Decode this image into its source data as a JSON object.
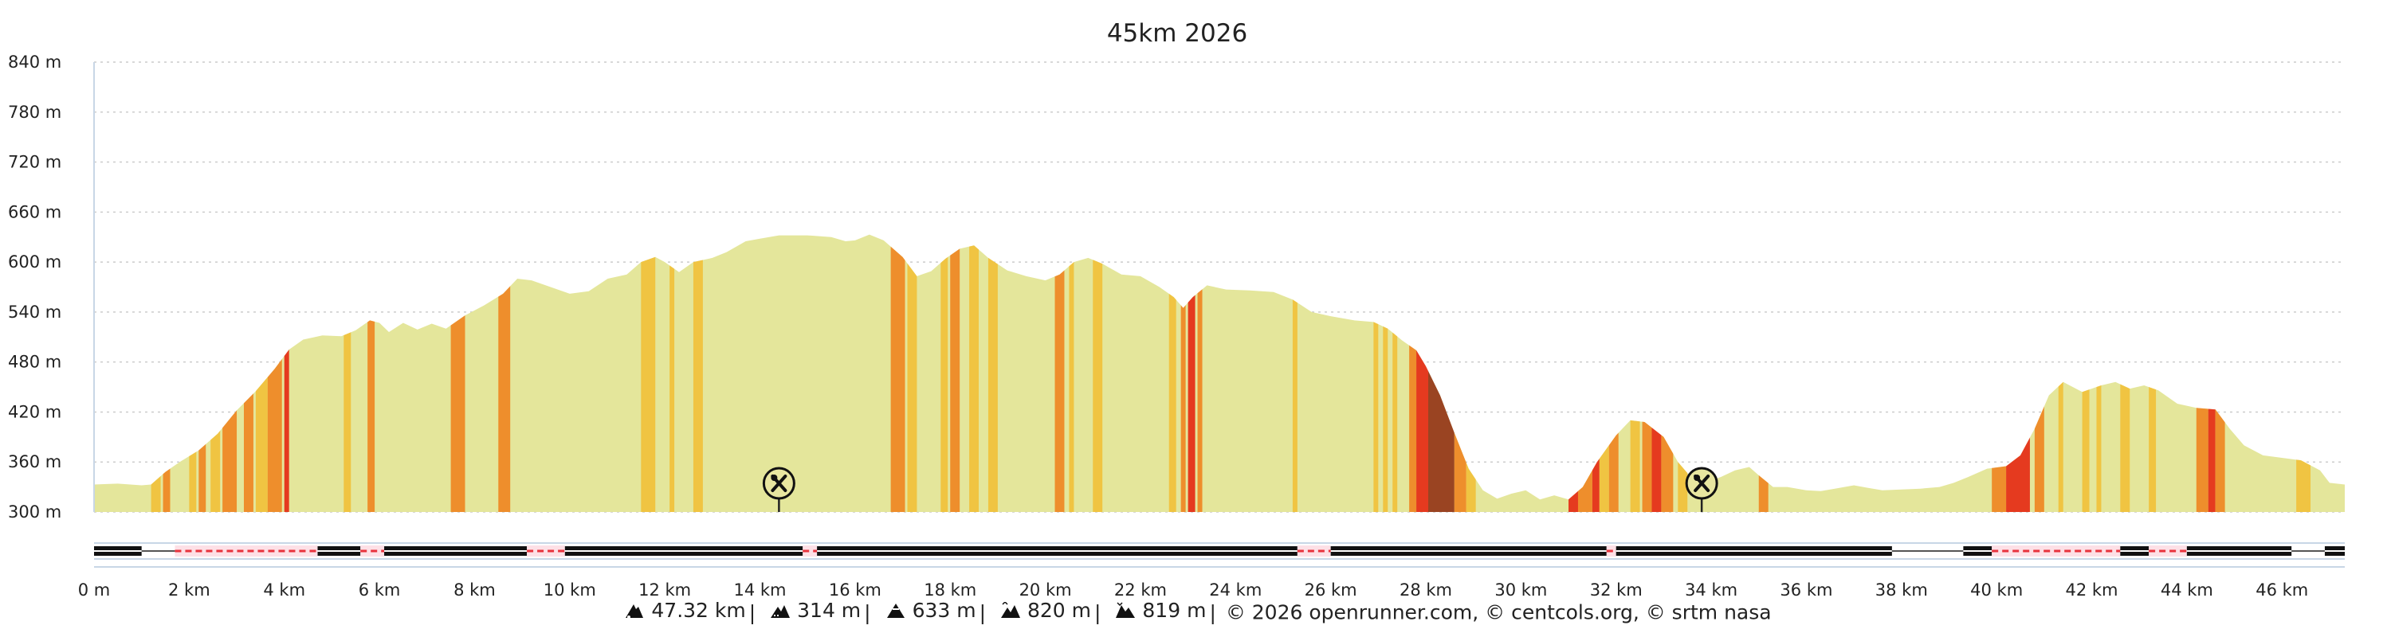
{
  "colors": {
    "fill": "#e4e69b",
    "grad_yellow": "#f0c442",
    "grad_orange": "#ee8e2c",
    "grad_red": "#e53a1f",
    "grad_brown": "#9a4422",
    "grid": "#cccccc",
    "axis": "#c8d6e6",
    "track": "#111111",
    "track_dashed": "#e8323c"
  },
  "chart_data": {
    "type": "area",
    "title": "45km 2026",
    "xlabel": "",
    "ylabel": "",
    "x_unit": "km",
    "y_unit": "m",
    "xlim": [
      0,
      47.32
    ],
    "ylim": [
      300,
      840
    ],
    "x_ticks": [
      0,
      2,
      4,
      6,
      8,
      10,
      12,
      14,
      16,
      18,
      20,
      22,
      24,
      26,
      28,
      30,
      32,
      34,
      36,
      38,
      40,
      42,
      44,
      46
    ],
    "x_tick_labels": [
      "0 m",
      "2 km",
      "4 km",
      "6 km",
      "8 km",
      "10 km",
      "12 km",
      "14 km",
      "16 km",
      "18 km",
      "20 km",
      "22 km",
      "24 km",
      "26 km",
      "28 km",
      "30 km",
      "32 km",
      "34 km",
      "36 km",
      "38 km",
      "40 km",
      "42 km",
      "44 km",
      "46 km"
    ],
    "y_ticks": [
      300,
      360,
      420,
      480,
      540,
      600,
      660,
      720,
      780,
      840
    ],
    "y_tick_labels": [
      "300 m",
      "360 m",
      "420 m",
      "480 m",
      "540 m",
      "600 m",
      "660 m",
      "720 m",
      "780 m",
      "840 m"
    ],
    "grid": true,
    "series": [
      {
        "points": [
          [
            0,
            333
          ],
          [
            0.5,
            334
          ],
          [
            1.0,
            332
          ],
          [
            1.2,
            333
          ],
          [
            1.5,
            348
          ],
          [
            1.8,
            360
          ],
          [
            2.2,
            374
          ],
          [
            2.6,
            394
          ],
          [
            3.0,
            422
          ],
          [
            3.4,
            445
          ],
          [
            3.8,
            472
          ],
          [
            4.1,
            495
          ],
          [
            4.4,
            507
          ],
          [
            4.8,
            512
          ],
          [
            5.2,
            511
          ],
          [
            5.5,
            518
          ],
          [
            5.8,
            530
          ],
          [
            6.0,
            527
          ],
          [
            6.2,
            516
          ],
          [
            6.5,
            527
          ],
          [
            6.8,
            519
          ],
          [
            7.1,
            526
          ],
          [
            7.4,
            520
          ],
          [
            7.8,
            536
          ],
          [
            8.2,
            548
          ],
          [
            8.6,
            562
          ],
          [
            8.9,
            580
          ],
          [
            9.2,
            578
          ],
          [
            9.6,
            570
          ],
          [
            10.0,
            562
          ],
          [
            10.4,
            565
          ],
          [
            10.8,
            580
          ],
          [
            11.2,
            585
          ],
          [
            11.5,
            600
          ],
          [
            11.8,
            606
          ],
          [
            12.0,
            600
          ],
          [
            12.3,
            588
          ],
          [
            12.6,
            600
          ],
          [
            13.0,
            605
          ],
          [
            13.3,
            612
          ],
          [
            13.7,
            625
          ],
          [
            14.0,
            628
          ],
          [
            14.4,
            632
          ],
          [
            15.0,
            632
          ],
          [
            15.5,
            630
          ],
          [
            15.8,
            625
          ],
          [
            16.0,
            626
          ],
          [
            16.3,
            633
          ],
          [
            16.6,
            626
          ],
          [
            17.0,
            606
          ],
          [
            17.3,
            583
          ],
          [
            17.6,
            589
          ],
          [
            17.9,
            604
          ],
          [
            18.2,
            616
          ],
          [
            18.5,
            620
          ],
          [
            18.8,
            605
          ],
          [
            19.2,
            590
          ],
          [
            19.6,
            583
          ],
          [
            20.0,
            578
          ],
          [
            20.3,
            585
          ],
          [
            20.6,
            600
          ],
          [
            20.9,
            605
          ],
          [
            21.2,
            598
          ],
          [
            21.6,
            585
          ],
          [
            22.0,
            583
          ],
          [
            22.4,
            570
          ],
          [
            22.7,
            558
          ],
          [
            22.9,
            545
          ],
          [
            23.1,
            558
          ],
          [
            23.4,
            572
          ],
          [
            23.8,
            567
          ],
          [
            24.3,
            566
          ],
          [
            24.8,
            564
          ],
          [
            25.2,
            555
          ],
          [
            25.6,
            540
          ],
          [
            26.0,
            535
          ],
          [
            26.5,
            530
          ],
          [
            26.9,
            528
          ],
          [
            27.2,
            520
          ],
          [
            27.5,
            506
          ],
          [
            27.8,
            494
          ],
          [
            28.0,
            475
          ],
          [
            28.3,
            440
          ],
          [
            28.6,
            395
          ],
          [
            28.9,
            352
          ],
          [
            29.2,
            326
          ],
          [
            29.5,
            316
          ],
          [
            29.8,
            322
          ],
          [
            30.1,
            326
          ],
          [
            30.4,
            315
          ],
          [
            30.7,
            320
          ],
          [
            31.0,
            315
          ],
          [
            31.3,
            330
          ],
          [
            31.6,
            360
          ],
          [
            32.0,
            392
          ],
          [
            32.3,
            410
          ],
          [
            32.6,
            408
          ],
          [
            33.0,
            390
          ],
          [
            33.3,
            360
          ],
          [
            33.6,
            340
          ],
          [
            33.9,
            336
          ],
          [
            34.2,
            342
          ],
          [
            34.5,
            350
          ],
          [
            34.8,
            354
          ],
          [
            35.0,
            344
          ],
          [
            35.3,
            330
          ],
          [
            35.6,
            330
          ],
          [
            36.0,
            326
          ],
          [
            36.3,
            325
          ],
          [
            36.6,
            328
          ],
          [
            37.0,
            332
          ],
          [
            37.3,
            329
          ],
          [
            37.6,
            326
          ],
          [
            38.0,
            327
          ],
          [
            38.4,
            328
          ],
          [
            38.8,
            330
          ],
          [
            39.1,
            335
          ],
          [
            39.4,
            342
          ],
          [
            39.8,
            352
          ],
          [
            40.2,
            355
          ],
          [
            40.5,
            368
          ],
          [
            40.8,
            400
          ],
          [
            41.1,
            440
          ],
          [
            41.4,
            456
          ],
          [
            41.8,
            444
          ],
          [
            42.2,
            452
          ],
          [
            42.5,
            456
          ],
          [
            42.8,
            448
          ],
          [
            43.1,
            452
          ],
          [
            43.4,
            446
          ],
          [
            43.8,
            430
          ],
          [
            44.2,
            425
          ],
          [
            44.6,
            423
          ],
          [
            44.9,
            400
          ],
          [
            45.2,
            380
          ],
          [
            45.6,
            368
          ],
          [
            46.0,
            365
          ],
          [
            46.4,
            362
          ],
          [
            46.8,
            350
          ],
          [
            47.0,
            335
          ],
          [
            47.32,
            333
          ]
        ]
      }
    ],
    "gradient_bands": [
      {
        "from": 1.2,
        "to": 1.4,
        "level": "yellow"
      },
      {
        "from": 1.45,
        "to": 1.6,
        "level": "orange"
      },
      {
        "from": 2.0,
        "to": 2.15,
        "level": "yellow"
      },
      {
        "from": 2.2,
        "to": 2.35,
        "level": "orange"
      },
      {
        "from": 2.45,
        "to": 2.65,
        "level": "yellow"
      },
      {
        "from": 2.7,
        "to": 3.0,
        "level": "orange"
      },
      {
        "from": 3.15,
        "to": 3.35,
        "level": "orange"
      },
      {
        "from": 3.4,
        "to": 3.65,
        "level": "yellow"
      },
      {
        "from": 3.65,
        "to": 3.95,
        "level": "orange"
      },
      {
        "from": 4.0,
        "to": 4.1,
        "level": "red"
      },
      {
        "from": 5.25,
        "to": 5.4,
        "level": "yellow"
      },
      {
        "from": 5.75,
        "to": 5.9,
        "level": "orange"
      },
      {
        "from": 7.5,
        "to": 7.8,
        "level": "orange"
      },
      {
        "from": 8.5,
        "to": 8.75,
        "level": "orange"
      },
      {
        "from": 11.5,
        "to": 11.8,
        "level": "yellow"
      },
      {
        "from": 12.1,
        "to": 12.2,
        "level": "yellow"
      },
      {
        "from": 12.6,
        "to": 12.8,
        "level": "yellow"
      },
      {
        "from": 16.75,
        "to": 17.05,
        "level": "orange"
      },
      {
        "from": 17.1,
        "to": 17.3,
        "level": "yellow"
      },
      {
        "from": 17.8,
        "to": 17.95,
        "level": "yellow"
      },
      {
        "from": 18.0,
        "to": 18.2,
        "level": "orange"
      },
      {
        "from": 18.4,
        "to": 18.6,
        "level": "yellow"
      },
      {
        "from": 18.8,
        "to": 19.0,
        "level": "yellow"
      },
      {
        "from": 20.2,
        "to": 20.4,
        "level": "orange"
      },
      {
        "from": 20.5,
        "to": 20.6,
        "level": "yellow"
      },
      {
        "from": 21.0,
        "to": 21.2,
        "level": "yellow"
      },
      {
        "from": 22.6,
        "to": 22.75,
        "level": "yellow"
      },
      {
        "from": 22.85,
        "to": 22.95,
        "level": "orange"
      },
      {
        "from": 23.0,
        "to": 23.15,
        "level": "red"
      },
      {
        "from": 23.2,
        "to": 23.3,
        "level": "orange"
      },
      {
        "from": 25.2,
        "to": 25.3,
        "level": "yellow"
      },
      {
        "from": 26.9,
        "to": 27.0,
        "level": "yellow"
      },
      {
        "from": 27.1,
        "to": 27.2,
        "level": "yellow"
      },
      {
        "from": 27.3,
        "to": 27.4,
        "level": "yellow"
      },
      {
        "from": 27.65,
        "to": 27.8,
        "level": "orange"
      },
      {
        "from": 27.8,
        "to": 28.05,
        "level": "red"
      },
      {
        "from": 28.05,
        "to": 28.6,
        "level": "brown"
      },
      {
        "from": 28.6,
        "to": 28.85,
        "level": "orange"
      },
      {
        "from": 28.85,
        "to": 29.05,
        "level": "yellow"
      },
      {
        "from": 31.0,
        "to": 31.2,
        "level": "red"
      },
      {
        "from": 31.2,
        "to": 31.5,
        "level": "orange"
      },
      {
        "from": 31.5,
        "to": 31.65,
        "level": "red"
      },
      {
        "from": 31.65,
        "to": 31.85,
        "level": "yellow"
      },
      {
        "from": 31.85,
        "to": 32.05,
        "level": "orange"
      },
      {
        "from": 32.3,
        "to": 32.5,
        "level": "yellow"
      },
      {
        "from": 32.55,
        "to": 32.75,
        "level": "orange"
      },
      {
        "from": 32.75,
        "to": 32.95,
        "level": "red"
      },
      {
        "from": 32.95,
        "to": 33.2,
        "level": "orange"
      },
      {
        "from": 33.3,
        "to": 33.5,
        "level": "yellow"
      },
      {
        "from": 35.0,
        "to": 35.2,
        "level": "orange"
      },
      {
        "from": 39.9,
        "to": 40.2,
        "level": "orange"
      },
      {
        "from": 40.2,
        "to": 40.7,
        "level": "red"
      },
      {
        "from": 40.8,
        "to": 41.0,
        "level": "orange"
      },
      {
        "from": 41.3,
        "to": 41.4,
        "level": "yellow"
      },
      {
        "from": 41.8,
        "to": 41.95,
        "level": "yellow"
      },
      {
        "from": 42.1,
        "to": 42.2,
        "level": "yellow"
      },
      {
        "from": 42.6,
        "to": 42.8,
        "level": "yellow"
      },
      {
        "from": 43.2,
        "to": 43.35,
        "level": "yellow"
      },
      {
        "from": 44.2,
        "to": 44.45,
        "level": "orange"
      },
      {
        "from": 44.45,
        "to": 44.6,
        "level": "red"
      },
      {
        "from": 44.6,
        "to": 44.8,
        "level": "orange"
      },
      {
        "from": 46.3,
        "to": 46.6,
        "level": "yellow"
      }
    ],
    "poi": [
      {
        "x": 14.4,
        "icon": "restaurant-icon"
      },
      {
        "x": 33.8,
        "icon": "restaurant-icon"
      }
    ],
    "track_segments": [
      {
        "from": 0,
        "to": 1.0,
        "style": "solid"
      },
      {
        "from": 1.0,
        "to": 1.7,
        "style": "gap"
      },
      {
        "from": 1.7,
        "to": 4.7,
        "style": "dashed"
      },
      {
        "from": 4.7,
        "to": 5.6,
        "style": "solid"
      },
      {
        "from": 5.6,
        "to": 6.1,
        "style": "dashed"
      },
      {
        "from": 6.1,
        "to": 9.1,
        "style": "solid"
      },
      {
        "from": 9.1,
        "to": 9.9,
        "style": "dashed"
      },
      {
        "from": 9.9,
        "to": 14.9,
        "style": "solid"
      },
      {
        "from": 14.9,
        "to": 15.2,
        "style": "dashed"
      },
      {
        "from": 15.2,
        "to": 25.3,
        "style": "solid"
      },
      {
        "from": 25.3,
        "to": 26.0,
        "style": "dashed"
      },
      {
        "from": 26.0,
        "to": 31.8,
        "style": "solid"
      },
      {
        "from": 31.8,
        "to": 32.0,
        "style": "dashed"
      },
      {
        "from": 32.0,
        "to": 37.8,
        "style": "solid"
      },
      {
        "from": 37.8,
        "to": 39.3,
        "style": "gap"
      },
      {
        "from": 39.3,
        "to": 39.9,
        "style": "solid"
      },
      {
        "from": 39.9,
        "to": 42.6,
        "style": "dashed"
      },
      {
        "from": 42.6,
        "to": 43.2,
        "style": "solid"
      },
      {
        "from": 43.2,
        "to": 44.0,
        "style": "dashed"
      },
      {
        "from": 44.0,
        "to": 46.2,
        "style": "solid"
      },
      {
        "from": 46.2,
        "to": 46.9,
        "style": "gap"
      },
      {
        "from": 46.9,
        "to": 47.32,
        "style": "solid"
      }
    ]
  },
  "footer": {
    "stats": [
      {
        "icon": "distance-icon",
        "text": "47.32 km"
      },
      {
        "icon": "elevation-gain-icon",
        "text": "314 m"
      },
      {
        "icon": "max-altitude-icon",
        "text": "633 m"
      },
      {
        "icon": "ascent-icon",
        "text": "820 m"
      },
      {
        "icon": "descent-icon",
        "text": "819 m"
      }
    ],
    "credits": "© 2026 openrunner.com, © centcols.org, © srtm nasa"
  }
}
